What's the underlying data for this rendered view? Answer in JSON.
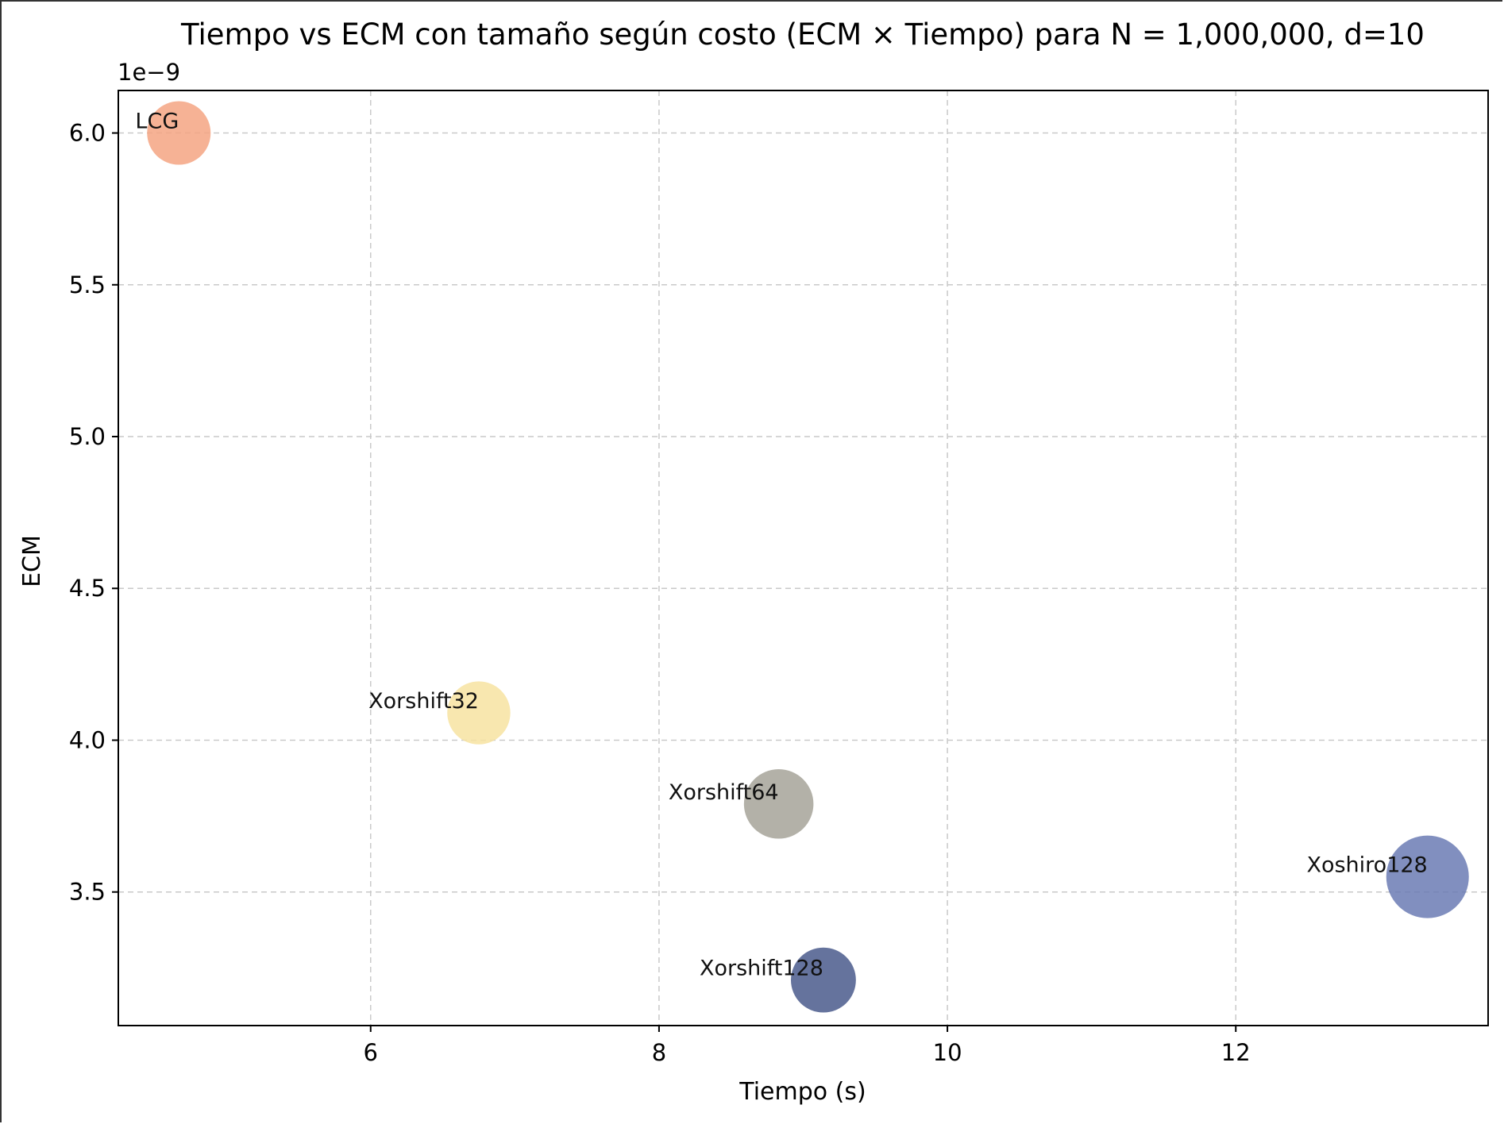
{
  "chart_data": {
    "type": "scatter",
    "title": "Tiempo vs ECM con tamaño según costo (ECM × Tiempo) para N = 1,000,000, d=10",
    "xlabel": "Tiempo (s)",
    "ylabel": "ECM",
    "y_offset_label": "1e−9",
    "xlim": [
      4.25,
      13.75
    ],
    "ylim": [
      3.06,
      6.14
    ],
    "xticks": [
      6,
      8,
      10,
      12
    ],
    "xtick_labels": [
      "6",
      "8",
      "10",
      "12"
    ],
    "yticks": [
      3.5,
      4.0,
      4.5,
      5.0,
      5.5,
      6.0
    ],
    "ytick_labels": [
      "3.5",
      "4.0",
      "4.5",
      "5.0",
      "5.5",
      "6.0"
    ],
    "grid": true,
    "y_units": "1e-9",
    "points": [
      {
        "label": "LCG",
        "x": 4.67,
        "y": 6.0,
        "cost": 28.0,
        "color": "#f4a582"
      },
      {
        "label": "Xorshift32",
        "x": 6.75,
        "y": 4.09,
        "cost": 27.6,
        "color": "#f7e3a1"
      },
      {
        "label": "Xorshift64",
        "x": 8.83,
        "y": 3.79,
        "cost": 33.5,
        "color": "#a6a399"
      },
      {
        "label": "Xorshift128",
        "x": 9.14,
        "y": 3.21,
        "cost": 29.3,
        "color": "#4a5a8c"
      },
      {
        "label": "Xoshiro128",
        "x": 13.33,
        "y": 3.55,
        "cost": 47.3,
        "color": "#6b7bb4"
      }
    ]
  }
}
